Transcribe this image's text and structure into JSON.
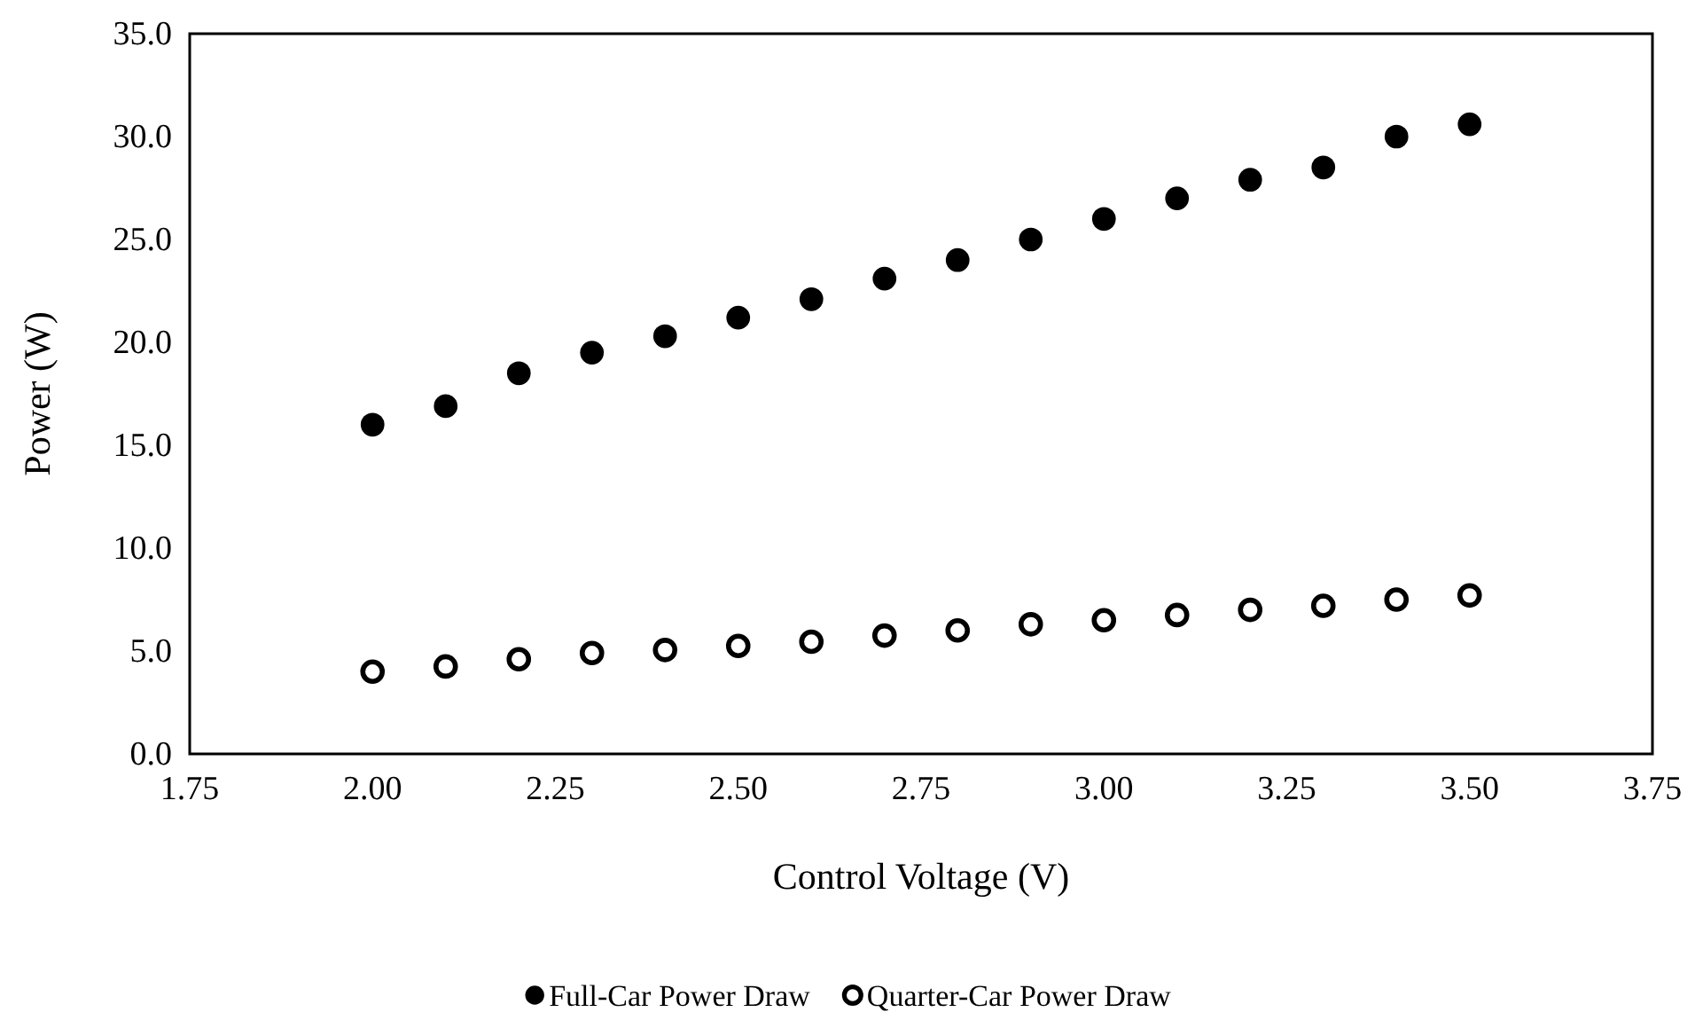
{
  "chart_data": {
    "type": "scatter",
    "xlabel": "Control Voltage (V)",
    "ylabel": "Power (W)",
    "xlim": [
      1.75,
      3.75
    ],
    "xticks": [
      {
        "value": 1.75,
        "label": "1.75"
      },
      {
        "value": 2,
        "label": "2.00"
      },
      {
        "value": 2.25,
        "label": "2.25"
      },
      {
        "value": 2.5,
        "label": "2.50"
      },
      {
        "value": 2.75,
        "label": "2.75"
      },
      {
        "value": 3,
        "label": "3.00"
      },
      {
        "value": 3.25,
        "label": "3.25"
      },
      {
        "value": 3.5,
        "label": "3.50"
      },
      {
        "value": 3.75,
        "label": "3.75"
      }
    ],
    "ylim": [
      0,
      35
    ],
    "yticks": [
      {
        "value": 0,
        "label": "0.0"
      },
      {
        "value": 5,
        "label": "5.0"
      },
      {
        "value": 10,
        "label": "10.0"
      },
      {
        "value": 15,
        "label": "15.0"
      },
      {
        "value": 20,
        "label": "20.0"
      },
      {
        "value": 25,
        "label": "25.0"
      },
      {
        "value": 30,
        "label": "30.0"
      },
      {
        "value": 35,
        "label": "35.0"
      }
    ],
    "x": [
      2.0,
      2.1,
      2.2,
      2.3,
      2.4,
      2.5,
      2.6,
      2.7,
      2.8,
      2.9,
      3.0,
      3.1,
      3.2,
      3.3,
      3.4,
      3.5
    ],
    "marker": "circle",
    "legend": "bottom",
    "grid": false,
    "series": [
      {
        "name": "Full-Car Power Draw",
        "color": "#000000",
        "values": [
          16.0,
          16.9,
          18.5,
          19.5,
          20.3,
          21.2,
          22.1,
          23.1,
          24.0,
          25.0,
          26.0,
          27.0,
          27.9,
          28.5,
          30.0,
          30.6
        ]
      },
      {
        "name": "Quarter-Car Power Draw",
        "color": "#000000",
        "values": [
          4.0,
          4.25,
          4.6,
          4.9,
          5.05,
          5.25,
          5.45,
          5.75,
          6.0,
          6.3,
          6.5,
          6.75,
          7.0,
          7.2,
          7.5,
          7.7
        ]
      }
    ]
  }
}
